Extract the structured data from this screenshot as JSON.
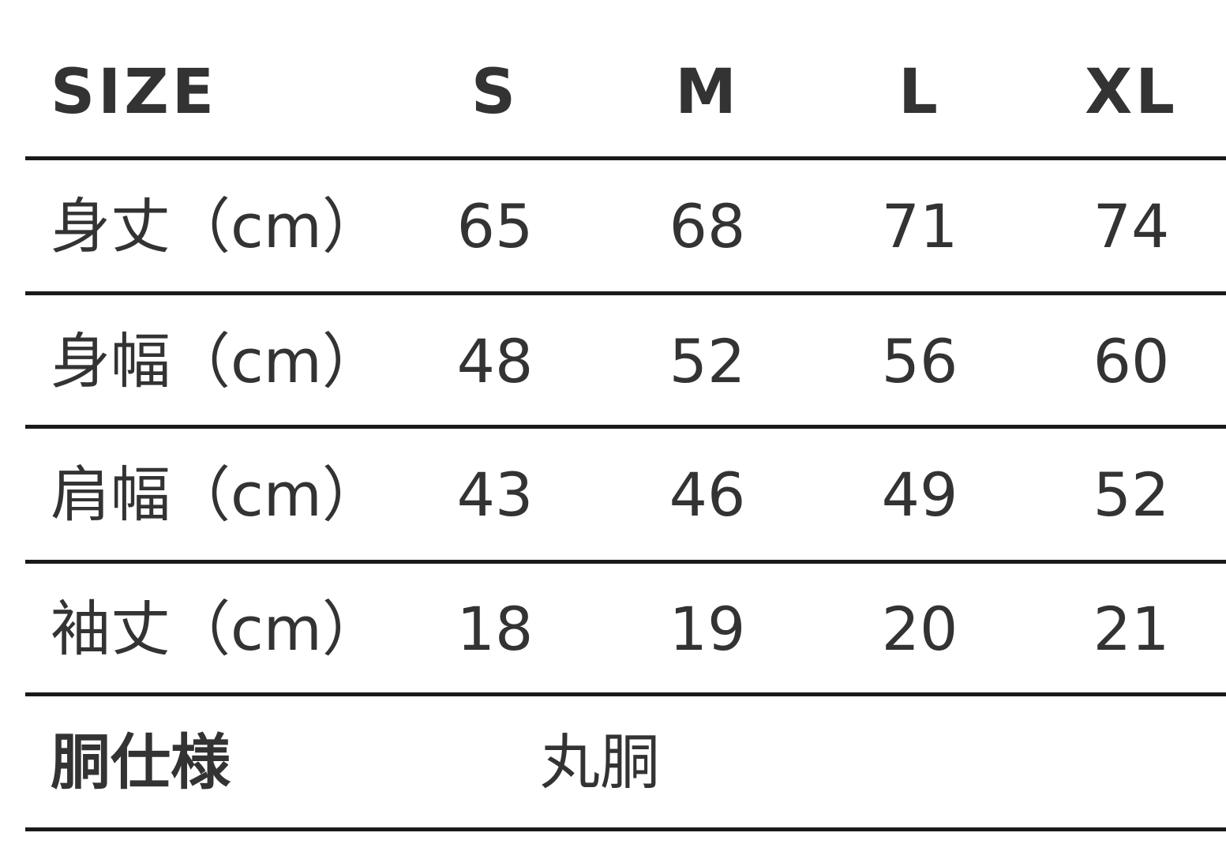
{
  "header": {
    "label": "SIZE",
    "sizes": [
      "S",
      "M",
      "L",
      "XL"
    ]
  },
  "rows": [
    {
      "label": "身丈（cm）",
      "values": [
        "65",
        "68",
        "71",
        "74"
      ]
    },
    {
      "label": "身幅（cm）",
      "values": [
        "48",
        "52",
        "56",
        "60"
      ]
    },
    {
      "label": "肩幅（cm）",
      "values": [
        "43",
        "46",
        "49",
        "52"
      ]
    },
    {
      "label": "袖丈（cm）",
      "values": [
        "18",
        "19",
        "20",
        "21"
      ]
    }
  ],
  "body_spec": {
    "label": "胴仕様",
    "value": "丸胴"
  }
}
